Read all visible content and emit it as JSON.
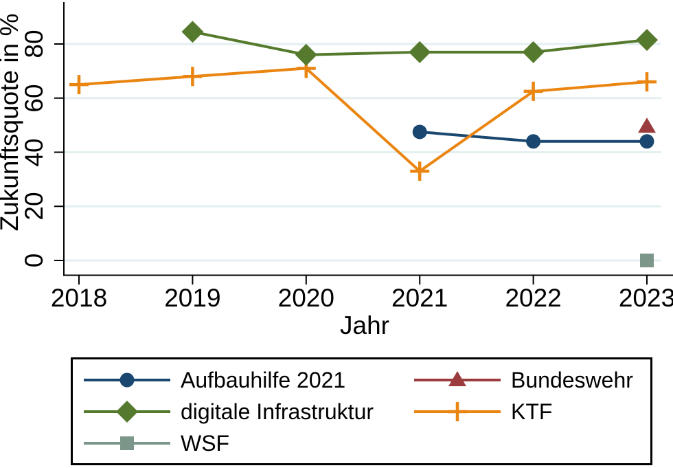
{
  "chart_data": {
    "type": "line",
    "title": "",
    "xlabel": "Jahr",
    "ylabel": "Zukunftsquote in %",
    "x_ticks": [
      "2018",
      "2019",
      "2020",
      "2021",
      "2022",
      "2023"
    ],
    "y_ticks": [
      "0",
      "20",
      "40",
      "60",
      "80"
    ],
    "y_tick_values": [
      0,
      20,
      40,
      60,
      80
    ],
    "xlim": [
      2017.87,
      2023.23
    ],
    "ylim": [
      0,
      95
    ],
    "grid": true,
    "legend_position": "bottom",
    "legend_columns": 2,
    "series": [
      {
        "name": "Aufbauhilfe 2021",
        "marker": "circle",
        "color": "#1A476F",
        "points": [
          [
            2021,
            47.5
          ],
          [
            2022,
            44
          ],
          [
            2023,
            44
          ]
        ]
      },
      {
        "name": "Bundeswehr",
        "marker": "triangle",
        "color": "#9B3B3E",
        "points": [
          [
            2023,
            49.5
          ]
        ]
      },
      {
        "name": "digitale Infrastruktur",
        "marker": "diamond",
        "color": "#567A2D",
        "points": [
          [
            2019,
            84.5
          ],
          [
            2020,
            76
          ],
          [
            2021,
            77
          ],
          [
            2022,
            77
          ],
          [
            2023,
            81.5
          ]
        ]
      },
      {
        "name": "KTF",
        "marker": "plus",
        "color": "#EA8511",
        "points": [
          [
            2018,
            65
          ],
          [
            2019,
            68
          ],
          [
            2020,
            71
          ],
          [
            2021,
            33
          ],
          [
            2022,
            62.5
          ],
          [
            2023,
            66
          ]
        ]
      },
      {
        "name": "WSF",
        "marker": "square",
        "color": "#7D968A",
        "points": [
          [
            2023,
            0
          ]
        ]
      }
    ],
    "colors": {
      "axis": "#000000",
      "gridline": "#E3EFF1",
      "text": "#000000",
      "background": "#FFFFFF"
    }
  }
}
